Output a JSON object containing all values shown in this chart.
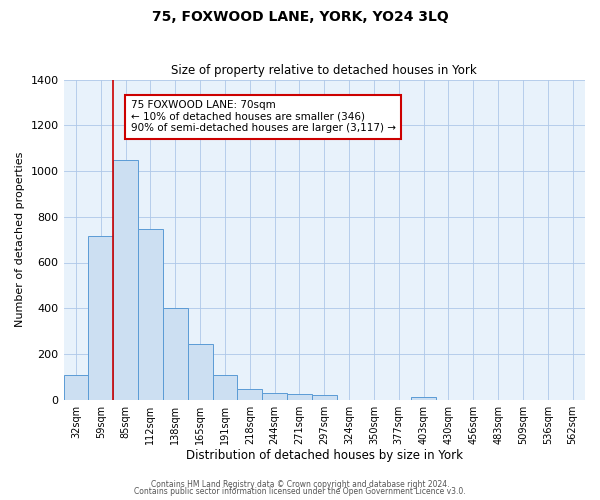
{
  "title": "75, FOXWOOD LANE, YORK, YO24 3LQ",
  "subtitle": "Size of property relative to detached houses in York",
  "xlabel": "Distribution of detached houses by size in York",
  "ylabel": "Number of detached properties",
  "bar_color": "#ccdff2",
  "bar_edge_color": "#5b9bd5",
  "background_color": "#e8f2fb",
  "grid_color": "#aec8e8",
  "categories": [
    "32sqm",
    "59sqm",
    "85sqm",
    "112sqm",
    "138sqm",
    "165sqm",
    "191sqm",
    "218sqm",
    "244sqm",
    "271sqm",
    "297sqm",
    "324sqm",
    "350sqm",
    "377sqm",
    "403sqm",
    "430sqm",
    "456sqm",
    "483sqm",
    "509sqm",
    "536sqm",
    "562sqm"
  ],
  "values": [
    107,
    718,
    1047,
    748,
    400,
    243,
    110,
    48,
    28,
    25,
    22,
    0,
    0,
    0,
    10,
    0,
    0,
    0,
    0,
    0,
    0
  ],
  "vline_x_idx": 1.5,
  "vline_color": "#cc0000",
  "annotation_line1": "75 FOXWOOD LANE: 70sqm",
  "annotation_line2": "← 10% of detached houses are smaller (346)",
  "annotation_line3": "90% of semi-detached houses are larger (3,117) →",
  "annotation_box_color": "white",
  "annotation_box_edge": "#cc0000",
  "ylim": [
    0,
    1400
  ],
  "yticks": [
    0,
    200,
    400,
    600,
    800,
    1000,
    1200,
    1400
  ],
  "footnote1": "Contains HM Land Registry data © Crown copyright and database right 2024.",
  "footnote2": "Contains public sector information licensed under the Open Government Licence v3.0."
}
